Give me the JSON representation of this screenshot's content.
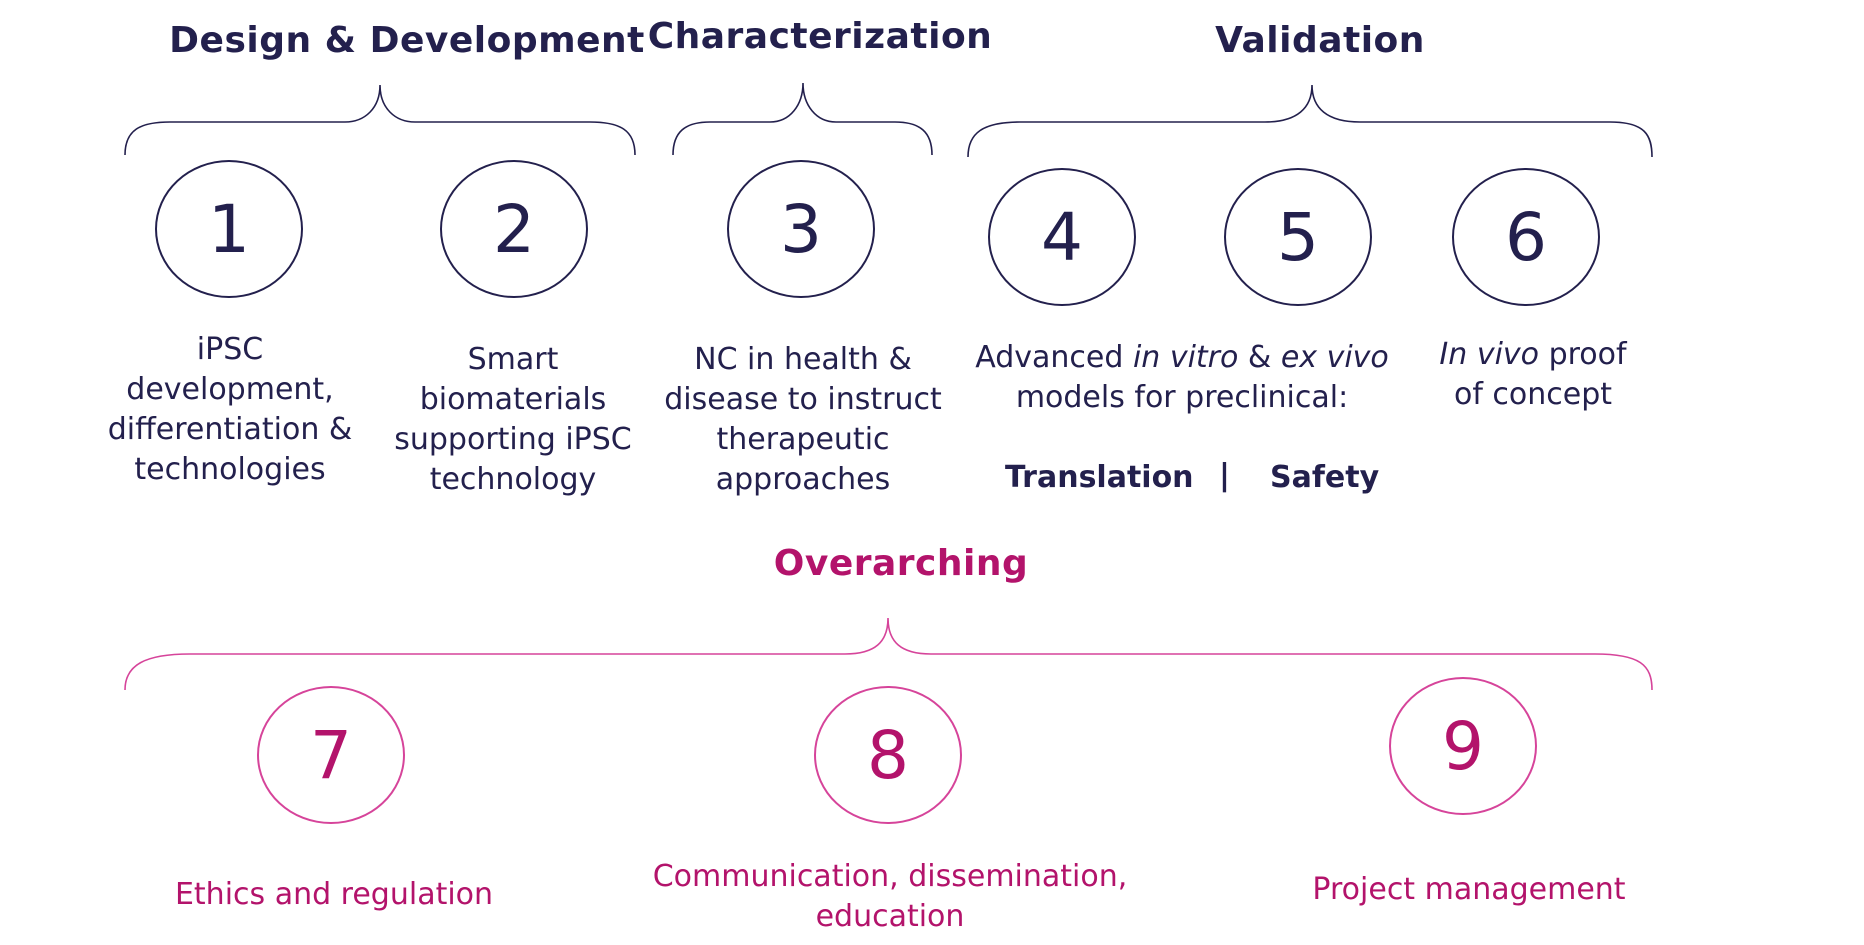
{
  "groups": {
    "design": "Design & Development",
    "characterization": "Characterization",
    "validation": "Validation",
    "overarching": "Overarching"
  },
  "steps": [
    {
      "number": "1",
      "lines": [
        "iPSC",
        "development,",
        "differentiation &",
        "technologies"
      ]
    },
    {
      "number": "2",
      "lines": [
        "Smart",
        "biomaterials",
        "supporting iPSC",
        "technology"
      ]
    },
    {
      "number": "3",
      "lines": [
        "NC in health &",
        "disease to instruct",
        "therapeutic",
        "approaches"
      ]
    },
    {
      "number": "4"
    },
    {
      "number": "5"
    },
    {
      "number": "6"
    },
    {
      "number": "7",
      "lines": [
        "Ethics and regulation"
      ]
    },
    {
      "number": "8",
      "lines": [
        "Communication, dissemination,",
        "education"
      ]
    },
    {
      "number": "9",
      "lines": [
        "Project management"
      ]
    }
  ],
  "advanced": {
    "prefix": "Advanced ",
    "in_vitro": "in vitro",
    "amp": " & ",
    "ex_vivo": "ex vivo",
    "line2": "models for preclinical:",
    "translation": "Translation",
    "separator": "|",
    "safety": "Safety"
  },
  "invivo": {
    "italic": "In vivo",
    "rest": " proof",
    "line2": "of concept"
  },
  "colors": {
    "navy": "#23204d",
    "magenta": "#b3136b",
    "magenta_line": "#d6449a"
  }
}
